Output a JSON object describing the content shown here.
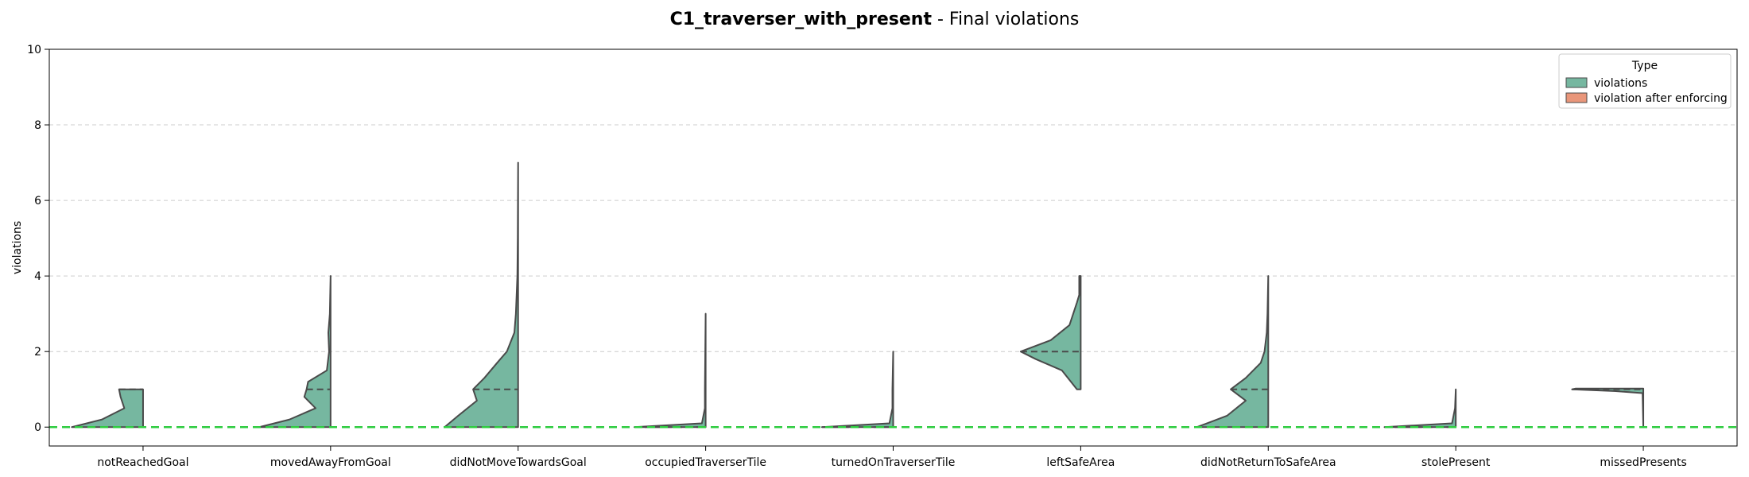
{
  "title": {
    "bold": "C1_traverser_with_present",
    "rest": " - Final violations"
  },
  "colors": {
    "violations": "#76b7a0",
    "violation_after_enforcing": "#e9967a",
    "outline": "#4a4a4a",
    "reference_line": "#2ecc40",
    "grid": "#cccccc"
  },
  "chart_data": {
    "type": "violin",
    "ylabel": "violations",
    "xlabel": "",
    "ylim": [
      -0.5,
      10
    ],
    "yticks": [
      0,
      2,
      4,
      6,
      8,
      10
    ],
    "grid": "y",
    "reference_line_y": 0,
    "legend": {
      "title": "Type",
      "placement": "top-right",
      "entries": [
        "violations",
        "violation after enforcing"
      ]
    },
    "categories": [
      "notReachedGoal",
      "movedAwayFromGoal",
      "didNotMoveTowardsGoal",
      "occupiedTraverserTile",
      "turnedOnTraverserTile",
      "leftSafeArea",
      "didNotReturnToSafeArea",
      "stolePresent",
      "missedPresents"
    ],
    "series": [
      {
        "name": "violations",
        "violins": [
          {
            "category": "notReachedGoal",
            "median": 1.0,
            "profile": [
              [
                0,
                0.95
              ],
              [
                0.2,
                0.55
              ],
              [
                0.5,
                0.25
              ],
              [
                0.8,
                0.3
              ],
              [
                1,
                0.32
              ]
            ]
          },
          {
            "category": "movedAwayFromGoal",
            "median": 1.0,
            "profile": [
              [
                0,
                0.95
              ],
              [
                0.2,
                0.55
              ],
              [
                0.5,
                0.2
              ],
              [
                0.8,
                0.35
              ],
              [
                1,
                0.32
              ],
              [
                1.2,
                0.3
              ],
              [
                1.5,
                0.05
              ],
              [
                2,
                0.02
              ],
              [
                2.5,
                0.03
              ],
              [
                3,
                0.01
              ],
              [
                4,
                0
              ]
            ]
          },
          {
            "category": "didNotMoveTowardsGoal",
            "median": 1.0,
            "profile": [
              [
                0,
                0.98
              ],
              [
                0.3,
                0.8
              ],
              [
                0.7,
                0.55
              ],
              [
                1,
                0.6
              ],
              [
                1.3,
                0.45
              ],
              [
                1.7,
                0.28
              ],
              [
                2,
                0.15
              ],
              [
                2.5,
                0.05
              ],
              [
                3,
                0.03
              ],
              [
                4,
                0.01
              ],
              [
                5,
                0.005
              ],
              [
                7,
                0
              ]
            ]
          },
          {
            "category": "occupiedTraverserTile",
            "median": 0,
            "profile": [
              [
                0,
                0.95
              ],
              [
                0.1,
                0.05
              ],
              [
                0.5,
                0.01
              ],
              [
                1,
                0.01
              ],
              [
                3,
                0
              ]
            ]
          },
          {
            "category": "turnedOnTraverserTile",
            "median": 0,
            "profile": [
              [
                0,
                0.95
              ],
              [
                0.1,
                0.05
              ],
              [
                0.5,
                0.01
              ],
              [
                1,
                0.01
              ],
              [
                2,
                0
              ]
            ]
          },
          {
            "category": "leftSafeArea",
            "median": 2.0,
            "profile": [
              [
                1,
                0.05
              ],
              [
                1.5,
                0.25
              ],
              [
                1.8,
                0.6
              ],
              [
                2,
                0.8
              ],
              [
                2.3,
                0.4
              ],
              [
                2.7,
                0.15
              ],
              [
                3,
                0.1
              ],
              [
                3.3,
                0.05
              ],
              [
                3.5,
                0.02
              ],
              [
                4,
                0.02
              ]
            ]
          },
          {
            "category": "didNotReturnToSafeArea",
            "median": 1.0,
            "profile": [
              [
                0,
                0.95
              ],
              [
                0.3,
                0.55
              ],
              [
                0.7,
                0.3
              ],
              [
                1,
                0.5
              ],
              [
                1.3,
                0.3
              ],
              [
                1.7,
                0.1
              ],
              [
                2,
                0.05
              ],
              [
                2.5,
                0.02
              ],
              [
                3,
                0.01
              ],
              [
                4,
                0
              ]
            ]
          },
          {
            "category": "stolePresent",
            "median": 0,
            "profile": [
              [
                0,
                0.95
              ],
              [
                0.1,
                0.05
              ],
              [
                0.5,
                0.01
              ],
              [
                1,
                0
              ]
            ]
          },
          {
            "category": "missedPresents",
            "median": 1.0,
            "profile": [
              [
                0,
                0
              ],
              [
                0.9,
                0.01
              ],
              [
                0.95,
                0.35
              ],
              [
                1,
                0.95
              ],
              [
                1.02,
                0.9
              ]
            ]
          }
        ]
      }
    ]
  }
}
